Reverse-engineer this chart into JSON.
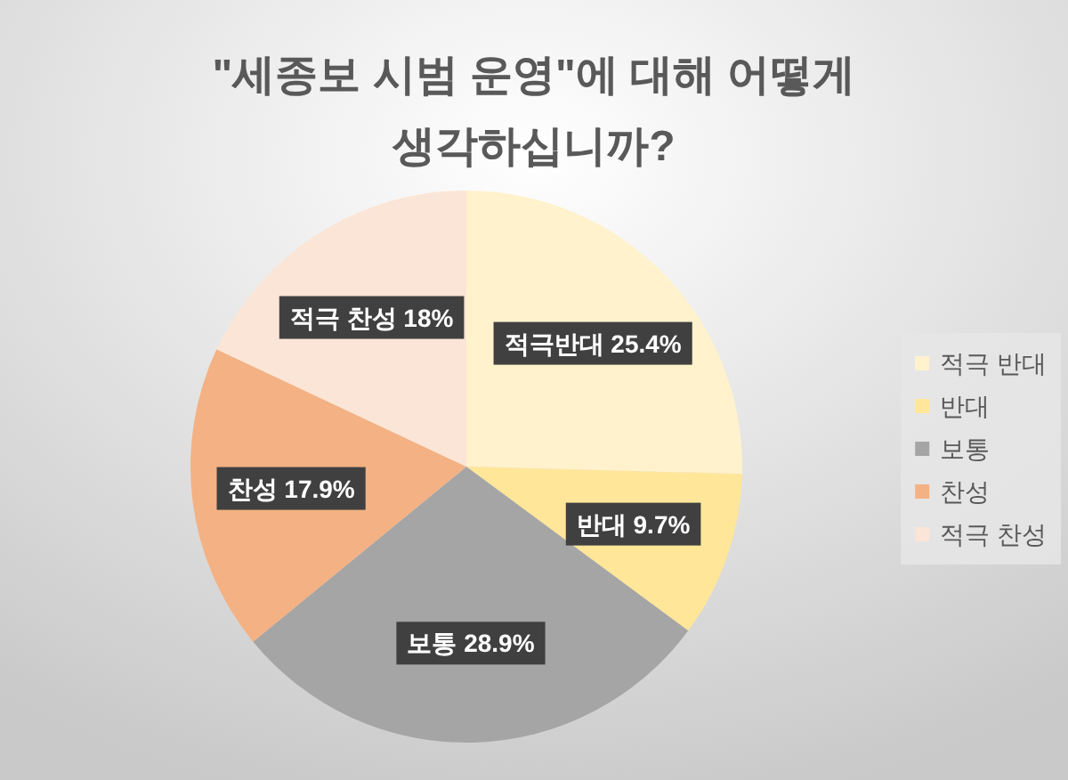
{
  "chart_data": {
    "type": "pie",
    "title": "\"세종보 시범 운영\"에 대해 어떻게 생각하십니까?",
    "categories": [
      "적극 반대",
      "반대",
      "보통",
      "찬성",
      "적극 찬성"
    ],
    "values": [
      25.4,
      9.7,
      28.9,
      17.9,
      18
    ],
    "colors": [
      "#fff2cc",
      "#ffe699",
      "#a5a5a5",
      "#f4b183",
      "#fbe5d6"
    ],
    "value_labels": [
      "적극반대 25.4%",
      "반대 9.7%",
      "보통 28.9%",
      "찬성 17.9%",
      "적극 찬성 18%"
    ],
    "legend": "right"
  }
}
